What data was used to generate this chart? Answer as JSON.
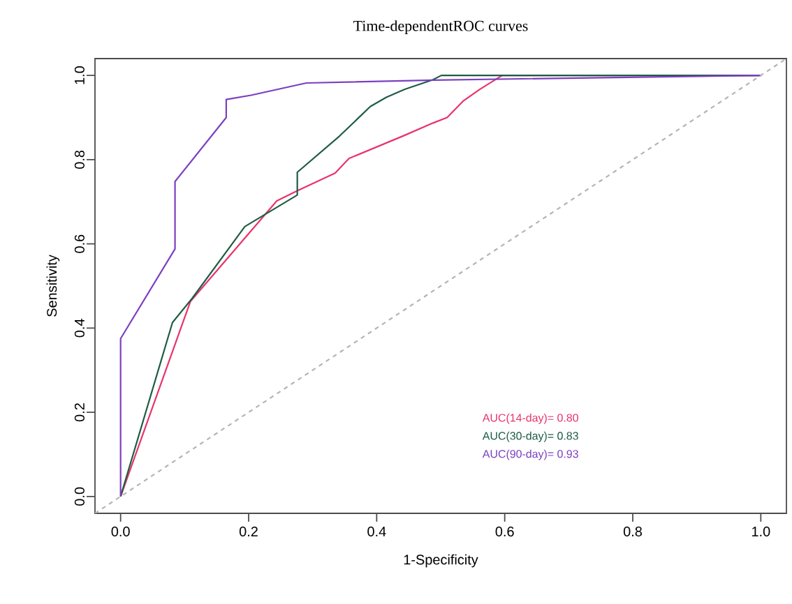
{
  "chart_data": {
    "type": "line",
    "title": "Time-dependentROC curves",
    "xlabel": "1-Specificity",
    "ylabel": "Sensitivity",
    "xlim": [
      -0.04,
      1.04
    ],
    "ylim": [
      -0.04,
      1.04
    ],
    "xticks": [
      {
        "value": 0,
        "label": "0.0"
      },
      0.2,
      0.4,
      0.6,
      0.8,
      {
        "value": 1,
        "label": "1.0"
      }
    ],
    "yticks": [
      {
        "value": 0,
        "label": "0.0"
      },
      0.2,
      0.4,
      0.6,
      0.8,
      {
        "value": 1,
        "label": "1.0"
      }
    ],
    "grid": false,
    "legend": "bottom right",
    "marker": "none",
    "line_style": "solid",
    "series": [
      {
        "name": "AUC(14-day)= 0.80",
        "color": "#e8336b",
        "x": [
          0,
          0.109,
          0.244,
          0.276,
          0.335,
          0.357,
          0.444,
          0.488,
          0.51,
          0.535,
          0.561,
          0.596,
          1.0
        ],
        "values": [
          0,
          0.463,
          0.702,
          0.726,
          0.768,
          0.803,
          0.858,
          0.887,
          0.9,
          0.939,
          0.967,
          1.0,
          1.0
        ]
      },
      {
        "name": "AUC(30-day)= 0.83",
        "color": "#1e5c45",
        "x": [
          0,
          0.081,
          0.112,
          0.194,
          0.276,
          0.276,
          0.342,
          0.39,
          0.415,
          0.444,
          0.488,
          0.501,
          1.0
        ],
        "values": [
          0,
          0.413,
          0.471,
          0.641,
          0.716,
          0.77,
          0.856,
          0.926,
          0.948,
          0.967,
          0.99,
          1.0,
          1.0
        ]
      },
      {
        "name": "AUC(90-day)= 0.93",
        "color": "#7b3fc0",
        "x": [
          0,
          0,
          0.085,
          0.085,
          0.165,
          0.165,
          0.204,
          0.29,
          0.49,
          1.0
        ],
        "values": [
          0,
          0.375,
          0.588,
          0.748,
          0.9,
          0.943,
          0.953,
          0.982,
          0.989,
          1.0
        ]
      },
      {
        "type": "line",
        "line_style": "dashed",
        "color": "#b4b4b4",
        "x": [
          -0.04,
          1.04
        ],
        "values": [
          -0.04,
          1.04
        ]
      }
    ]
  }
}
